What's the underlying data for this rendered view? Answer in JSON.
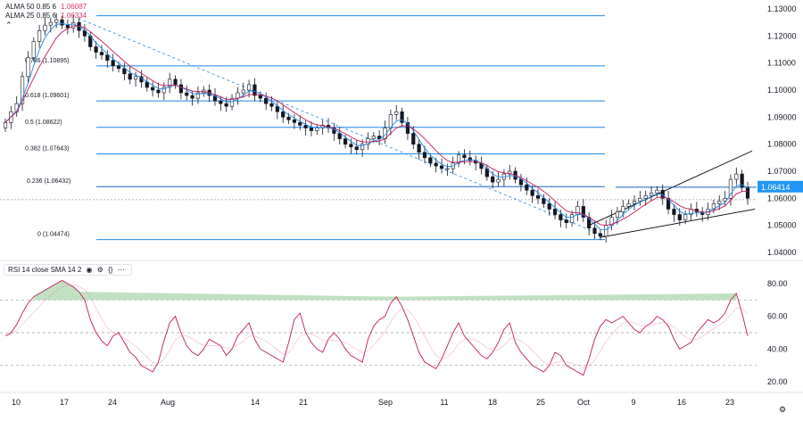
{
  "legend": {
    "alma50": {
      "label": "ALMA 50 0.85 6",
      "value": "1.06087"
    },
    "alma25": {
      "label": "ALMA 25 0.85 6",
      "value": "1.06334"
    },
    "collapse_icon": "chevron-up-icon"
  },
  "rsi_legend": {
    "label": "RSI 14 close SMA 14 2",
    "icons": [
      "eye-icon",
      "settings-icon",
      "code-icon",
      "more-icon"
    ]
  },
  "price_axis": {
    "ticks": [
      "1.13000",
      "1.12000",
      "1.11000",
      "1.10000",
      "1.09000",
      "1.08000",
      "1.07000",
      "1.06000",
      "1.05000",
      "1.04000"
    ],
    "current_price": "1.06414",
    "current_price_color": "#2196f3"
  },
  "rsi_axis": {
    "ticks": [
      "80.00",
      "60.00",
      "40.00",
      "20.00"
    ]
  },
  "time_axis": {
    "ticks": [
      "10",
      "17",
      "24",
      "Aug",
      "14",
      "21",
      "Sep",
      "11",
      "18",
      "25",
      "Oct",
      "9",
      "16",
      "23"
    ]
  },
  "fib_labels": [
    "0.786 (1.10895)",
    "0.618 (1.09601)",
    "0.5 (1.08622)",
    "0.382 (1.07643)",
    "0.236 (1.06432)",
    "0 (1.04474)"
  ],
  "colors": {
    "fib_line": "#1e88e5",
    "down_candle": "#f23645",
    "up_candle": "#089981",
    "rsi": "#c2185b",
    "alma": "#2962ff",
    "trend": "#000000"
  },
  "chart_data": {
    "type": "line",
    "price_ylim": [
      1.04,
      1.13
    ],
    "rsi_ylim": [
      20,
      85
    ],
    "fib_levels": [
      {
        "ratio": "0.786",
        "price": 1.10895
      },
      {
        "ratio": "0.618",
        "price": 1.09601
      },
      {
        "ratio": "0.5",
        "price": 1.08622
      },
      {
        "ratio": "0.382",
        "price": 1.07643
      },
      {
        "ratio": "0.236",
        "price": 1.06432
      },
      {
        "ratio": "0",
        "price": 1.04474
      }
    ],
    "fib_top": 1.1275,
    "price_series": [
      1.088,
      1.092,
      1.095,
      1.105,
      1.112,
      1.118,
      1.122,
      1.124,
      1.125,
      1.126,
      1.124,
      1.123,
      1.125,
      1.122,
      1.12,
      1.116,
      1.114,
      1.113,
      1.111,
      1.109,
      1.108,
      1.106,
      1.104,
      1.105,
      1.103,
      1.101,
      1.1,
      1.099,
      1.101,
      1.104,
      1.102,
      1.099,
      1.098,
      1.097,
      1.099,
      1.1,
      1.098,
      1.096,
      1.095,
      1.094,
      1.097,
      1.099,
      1.1,
      1.102,
      1.098,
      1.097,
      1.095,
      1.094,
      1.092,
      1.09,
      1.089,
      1.088,
      1.087,
      1.086,
      1.085,
      1.086,
      1.087,
      1.086,
      1.084,
      1.082,
      1.08,
      1.079,
      1.078,
      1.08,
      1.082,
      1.083,
      1.082,
      1.086,
      1.091,
      1.092,
      1.088,
      1.084,
      1.08,
      1.077,
      1.075,
      1.073,
      1.072,
      1.071,
      1.071,
      1.073,
      1.076,
      1.075,
      1.074,
      1.073,
      1.071,
      1.068,
      1.066,
      1.067,
      1.069,
      1.07,
      1.067,
      1.065,
      1.063,
      1.061,
      1.06,
      1.058,
      1.056,
      1.054,
      1.052,
      1.051,
      1.054,
      1.057,
      1.053,
      1.049,
      1.047,
      1.046,
      1.05,
      1.053,
      1.055,
      1.057,
      1.058,
      1.059,
      1.06,
      1.061,
      1.062,
      1.063,
      1.06,
      1.056,
      1.054,
      1.052,
      1.054,
      1.056,
      1.055,
      1.054,
      1.056,
      1.058,
      1.059,
      1.06,
      1.067,
      1.069,
      1.064,
      1.06
    ],
    "rsi_series": [
      48,
      50,
      55,
      62,
      68,
      72,
      74,
      76,
      78,
      80,
      82,
      80,
      78,
      75,
      70,
      58,
      50,
      45,
      42,
      48,
      50,
      44,
      38,
      35,
      30,
      28,
      26,
      32,
      45,
      56,
      60,
      50,
      42,
      38,
      36,
      40,
      46,
      44,
      42,
      36,
      40,
      48,
      52,
      56,
      46,
      40,
      38,
      36,
      34,
      32,
      44,
      58,
      62,
      50,
      44,
      40,
      38,
      46,
      50,
      46,
      40,
      36,
      34,
      32,
      46,
      54,
      58,
      60,
      68,
      72,
      66,
      58,
      48,
      38,
      32,
      30,
      28,
      34,
      42,
      50,
      56,
      48,
      44,
      40,
      36,
      34,
      38,
      44,
      52,
      56,
      44,
      38,
      34,
      30,
      28,
      26,
      30,
      38,
      36,
      30,
      28,
      26,
      24,
      34,
      46,
      54,
      58,
      56,
      58,
      60,
      56,
      52,
      50,
      54,
      56,
      60,
      58,
      54,
      46,
      40,
      42,
      44,
      50,
      54,
      58,
      56,
      58,
      62,
      70,
      74,
      62,
      48
    ]
  }
}
